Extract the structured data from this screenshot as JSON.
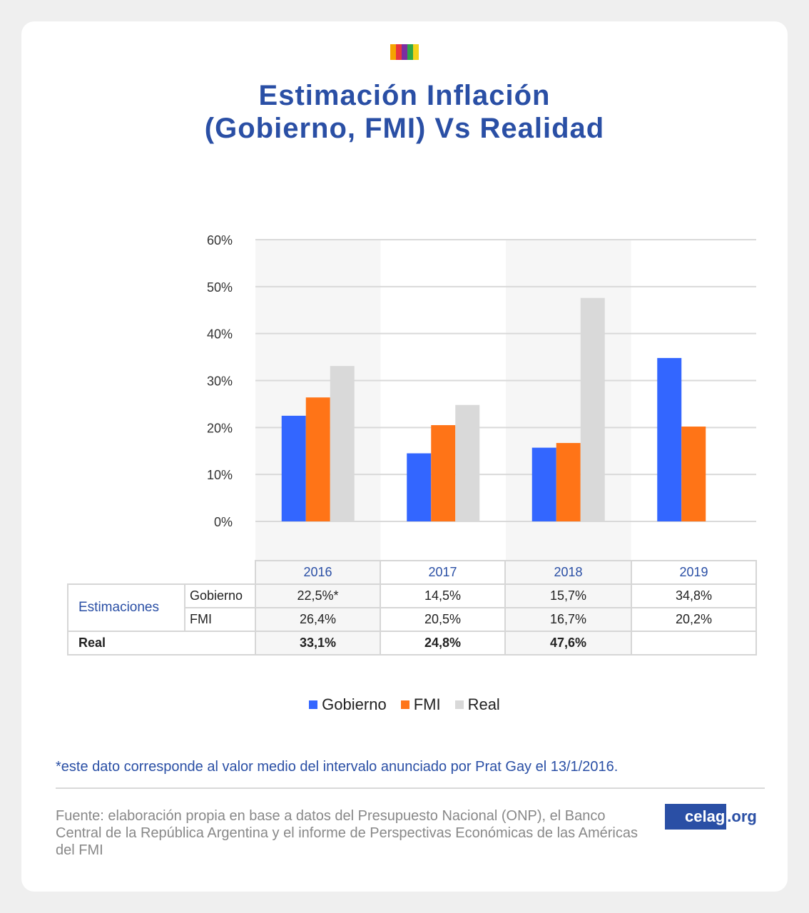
{
  "title_line1": "Estimación Inflación",
  "title_line2": "(Gobierno, FMI) Vs Realidad",
  "logo_colors": [
    "#f5a300",
    "#e8353f",
    "#7b2fa0",
    "#2fa64a",
    "#f2d21a"
  ],
  "colors": {
    "gobierno": "#3366ff",
    "fmi": "#ff7417",
    "real": "#d9d9d9",
    "accent": "#2a4fa5"
  },
  "chart_data": {
    "type": "bar",
    "categories": [
      "2016",
      "2017",
      "2018",
      "2019"
    ],
    "series": [
      {
        "name": "Gobierno",
        "values": [
          22.5,
          14.5,
          15.7,
          34.8
        ]
      },
      {
        "name": "FMI",
        "values": [
          26.4,
          20.5,
          16.7,
          20.2
        ]
      },
      {
        "name": "Real",
        "values": [
          33.1,
          24.8,
          47.6,
          null
        ]
      }
    ],
    "ylim": [
      0,
      60
    ],
    "yticks": [
      0,
      10,
      20,
      30,
      40,
      50,
      60
    ],
    "ytick_labels": [
      "0%",
      "10%",
      "20%",
      "30%",
      "40%",
      "50%",
      "60%"
    ],
    "grid": true,
    "legend": "bottom"
  },
  "table": {
    "years": [
      "2016",
      "2017",
      "2018",
      "2019"
    ],
    "estimaciones_label": "Estimaciones",
    "gobierno_label": "Gobierno",
    "fmi_label": "FMI",
    "real_label": "Real",
    "gobierno": [
      "22,5%*",
      "14,5%",
      "15,7%",
      "34,8%"
    ],
    "fmi": [
      "26,4%",
      "20,5%",
      "16,7%",
      "20,2%"
    ],
    "real": [
      "33,1%",
      "24,8%",
      "47,6%",
      ""
    ]
  },
  "legend": {
    "gobierno": "Gobierno",
    "fmi": "FMI",
    "real": "Real"
  },
  "footnote": "*este dato corresponde al valor medio del intervalo anunciado por Prat Gay el 13/1/2016.",
  "source": "Fuente: elaboración propia en base a datos del Presupuesto Nacional (ONP), el Banco Central de la República Argentina y el informe de Perspectivas Económicas de las Américas del FMI",
  "brand": {
    "part1": "celag",
    "part2": ".org"
  }
}
